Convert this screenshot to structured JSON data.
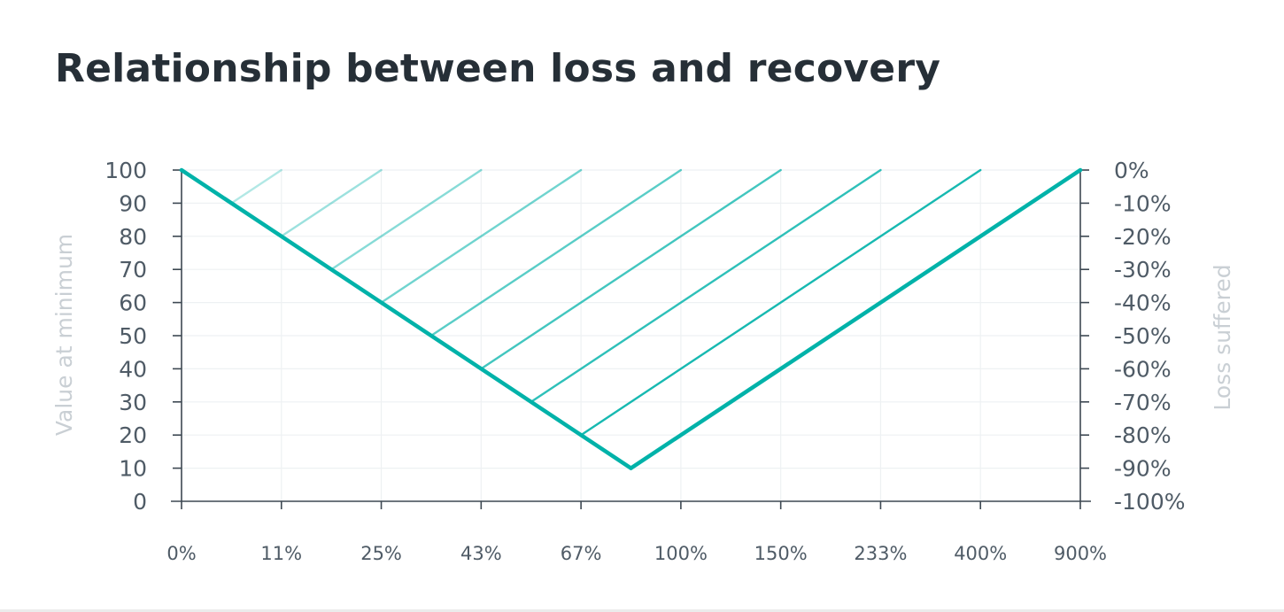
{
  "chart_data": {
    "type": "line",
    "title": "Relationship between loss and recovery",
    "left_axis": {
      "label": "Value at minimum",
      "range": [
        0,
        100
      ],
      "ticks": [
        "0",
        "10",
        "20",
        "30",
        "40",
        "50",
        "60",
        "70",
        "80",
        "90",
        "100"
      ]
    },
    "right_axis": {
      "label": "Loss suffered",
      "range": [
        -100,
        0
      ],
      "ticks": [
        "-100%",
        "-90%",
        "-80%",
        "-70%",
        "-60%",
        "-50%",
        "-40%",
        "-30%",
        "-20%",
        "-10%",
        "0%"
      ]
    },
    "x_axis": {
      "label": "",
      "ticks": [
        "0%",
        "11%",
        "25%",
        "43%",
        "67%",
        "100%",
        "150%",
        "233%",
        "400%",
        "900%"
      ]
    },
    "grid": true,
    "loss_line": {
      "points": [
        {
          "x": 0,
          "value": 100
        },
        {
          "x": 4.5,
          "value": 10
        }
      ]
    },
    "series": [
      {
        "loss_pct": -10,
        "value_at_min": 90,
        "recovery_pct": 11
      },
      {
        "loss_pct": -20,
        "value_at_min": 80,
        "recovery_pct": 25
      },
      {
        "loss_pct": -30,
        "value_at_min": 70,
        "recovery_pct": 43
      },
      {
        "loss_pct": -40,
        "value_at_min": 60,
        "recovery_pct": 67
      },
      {
        "loss_pct": -50,
        "value_at_min": 50,
        "recovery_pct": 100
      },
      {
        "loss_pct": -60,
        "value_at_min": 40,
        "recovery_pct": 150
      },
      {
        "loss_pct": -70,
        "value_at_min": 30,
        "recovery_pct": 233
      },
      {
        "loss_pct": -80,
        "value_at_min": 20,
        "recovery_pct": 400
      },
      {
        "loss_pct": -90,
        "value_at_min": 10,
        "recovery_pct": 900
      }
    ],
    "colors": {
      "accent": "#00b2a9",
      "title": "#262f37",
      "ticks": "#4f5b66",
      "axis_title": "#c9cfd4",
      "grid": "#eef1f3",
      "axis": "#3d4852"
    }
  }
}
